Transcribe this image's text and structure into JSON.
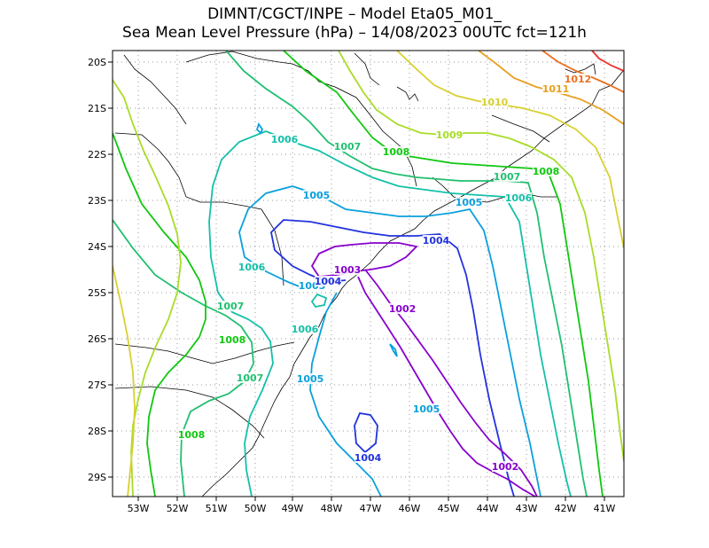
{
  "header": {
    "line1": "DIMNT/CGCT/INPE –   Model Eta05_M01_",
    "line2": "Sea Mean Level Pressure (hPa) – 14/08/2023 00UTC fct=121h"
  },
  "map": {
    "lon_labels": [
      "53W",
      "52W",
      "51W",
      "50W",
      "49W",
      "48W",
      "47W",
      "46W",
      "45W",
      "44W",
      "43W",
      "42W",
      "41W"
    ],
    "lat_labels": [
      "20S",
      "21S",
      "22S",
      "23S",
      "24S",
      "25S",
      "26S",
      "27S",
      "28S",
      "29S"
    ],
    "grid": "dotted",
    "colors": {
      "1002": "#8800cc",
      "1003": "#8800cc",
      "1004": "#2233dd",
      "1005": "#0aa0dd",
      "1006": "#15c0a8",
      "1007": "#20c070",
      "1008": "#10c810",
      "1009": "#a8dc28",
      "1010": "#d8d030",
      "1011": "#e8a020",
      "1012": "#ec7020",
      "1013": "#ee3030"
    },
    "contour_labels": [
      {
        "text": "1012",
        "level": "1012"
      },
      {
        "text": "1011",
        "level": "1011"
      },
      {
        "text": "1010",
        "level": "1010"
      },
      {
        "text": "1009",
        "level": "1009"
      },
      {
        "text": "1008",
        "level": "1008"
      },
      {
        "text": "1007",
        "level": "1007"
      },
      {
        "text": "1006",
        "level": "1006"
      },
      {
        "text": "1005",
        "level": "1005"
      },
      {
        "text": "1004",
        "level": "1004"
      },
      {
        "text": "1003",
        "level": "1003"
      },
      {
        "text": "1002",
        "level": "1002"
      }
    ]
  }
}
